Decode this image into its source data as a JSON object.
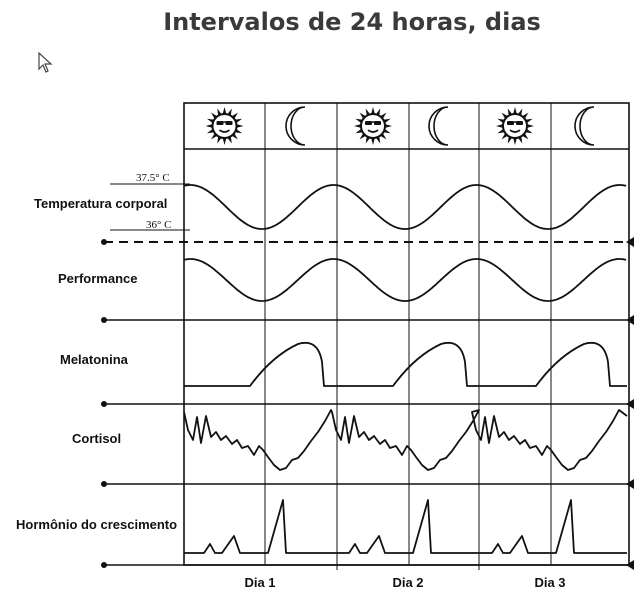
{
  "title": "Intervalos de 24 horas, dias",
  "periods": [
    "day",
    "night",
    "day",
    "night",
    "day",
    "night"
  ],
  "rows": [
    {
      "label": "Temperatura corporal",
      "ticks": [
        "37.5° C",
        "36° C"
      ]
    },
    {
      "label": "Performance"
    },
    {
      "label": "Melatonina"
    },
    {
      "label": "Cortisol"
    },
    {
      "label": "Hormônio do crescimento"
    }
  ],
  "days": [
    "Dia 1",
    "Dia 2",
    "Dia 3"
  ],
  "icons": {
    "day": "sun-icon",
    "night": "moon-icon",
    "pointer": "cursor-icon"
  }
}
